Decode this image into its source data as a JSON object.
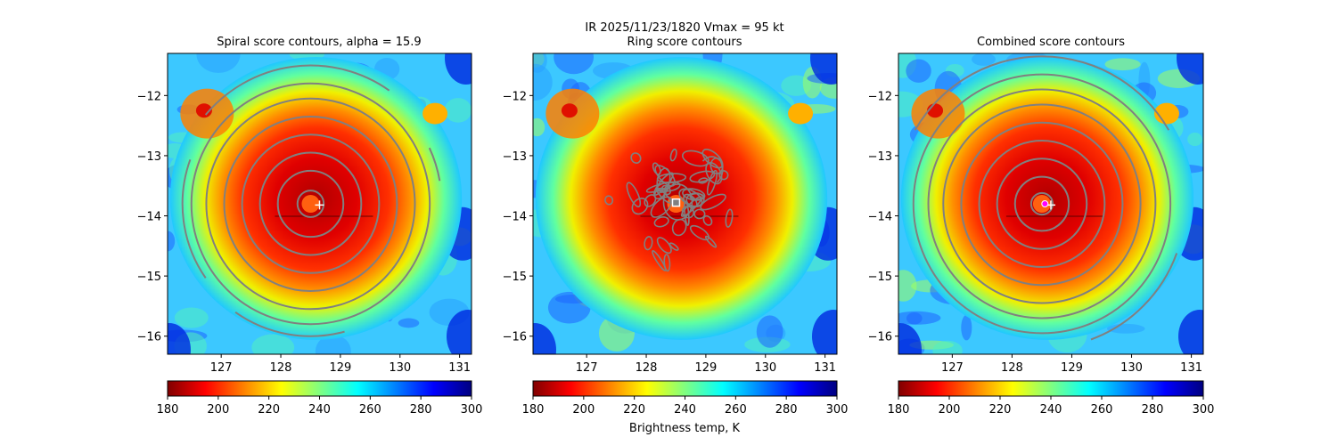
{
  "suptitle": {
    "line1": "IR  2025/11/23/1820    Vmax = 95 kt"
  },
  "colormap": {
    "name": "jet_r",
    "stops": [
      "#800000",
      "#ff0000",
      "#ff8000",
      "#ffff00",
      "#80ff80",
      "#00ffff",
      "#0080ff",
      "#0000ff",
      "#000080"
    ]
  },
  "chart_data": [
    {
      "type": "heatmap",
      "title": "Spiral score contours, alpha = 15.9",
      "xlim": [
        126.1,
        131.2
      ],
      "ylim": [
        -16.3,
        -11.3
      ],
      "xticks": [
        127,
        128,
        129,
        130,
        131
      ],
      "xtick_labels": [
        "127",
        "128",
        "129",
        "130",
        "131"
      ],
      "yticks": [
        -12,
        -13,
        -14,
        -15,
        -16
      ],
      "ytick_labels": [
        "−12",
        "−13",
        "−14",
        "−15",
        "−16"
      ],
      "center": {
        "lon": 128.5,
        "lat": -13.8
      },
      "marker": {
        "type": "plus",
        "lon": 128.65,
        "lat": -13.82,
        "color": "#ffffff"
      },
      "contour_color": "#808080",
      "contour_radii_deg": [
        0.22,
        0.55,
        0.85,
        1.15,
        1.45,
        1.75,
        2.0
      ],
      "outer_arcs": [
        {
          "radius": 2.3,
          "start_deg": 55,
          "end_deg": 140
        },
        {
          "radius": 2.15,
          "start_deg": 160,
          "end_deg": 215
        },
        {
          "radius": 2.2,
          "start_deg": 235,
          "end_deg": 285
        },
        {
          "radius": 2.2,
          "start_deg": 10,
          "end_deg": 25
        }
      ],
      "colorbar": {
        "vmin": 180,
        "vmax": 300,
        "ticks": [
          180,
          200,
          220,
          240,
          260,
          280,
          300
        ],
        "tick_labels": [
          "180",
          "200",
          "220",
          "240",
          "260",
          "280",
          "300"
        ],
        "label": ""
      }
    },
    {
      "type": "heatmap",
      "title": "Ring score contours",
      "xlim": [
        126.1,
        131.2
      ],
      "ylim": [
        -16.3,
        -11.3
      ],
      "xticks": [
        127,
        128,
        129,
        130,
        131
      ],
      "xtick_labels": [
        "127",
        "128",
        "129",
        "130",
        "131"
      ],
      "yticks": [
        -12,
        -13,
        -14,
        -15,
        -16
      ],
      "ytick_labels": [
        "−12",
        "−13",
        "−14",
        "−15",
        "−16"
      ],
      "center": {
        "lon": 128.5,
        "lat": -13.8
      },
      "marker": {
        "type": "square",
        "lon": 128.5,
        "lat": -13.78,
        "color": "#ffffff"
      },
      "contour_color": "#808080",
      "ring_blobs": 46,
      "colorbar": {
        "vmin": 180,
        "vmax": 300,
        "ticks": [
          180,
          200,
          220,
          240,
          260,
          280,
          300
        ],
        "tick_labels": [
          "180",
          "200",
          "220",
          "240",
          "260",
          "280",
          "300"
        ],
        "label": "Brightness temp, K"
      }
    },
    {
      "type": "heatmap",
      "title": "Combined score contours",
      "xlim": [
        126.1,
        131.2
      ],
      "ylim": [
        -16.3,
        -11.3
      ],
      "xticks": [
        127,
        128,
        129,
        130,
        131
      ],
      "xtick_labels": [
        "127",
        "128",
        "129",
        "130",
        "131"
      ],
      "yticks": [
        -12,
        -13,
        -14,
        -15,
        -16
      ],
      "ytick_labels": [
        "−12",
        "−13",
        "−14",
        "−15",
        "−16"
      ],
      "center": {
        "lon": 128.5,
        "lat": -13.8
      },
      "marker": {
        "type": "plus",
        "lon": 128.65,
        "lat": -13.82,
        "color": "#ffffff"
      },
      "marker2": {
        "type": "dot",
        "lon": 128.55,
        "lat": -13.8,
        "color": "#ff00ff"
      },
      "contour_color": "#808080",
      "contour_radii_deg": [
        0.18,
        0.45,
        0.75,
        1.05,
        1.35,
        1.65,
        1.9,
        2.15
      ],
      "outer_arcs": [
        {
          "radius": 2.45,
          "start_deg": 30,
          "end_deg": 150
        },
        {
          "radius": 2.4,
          "start_deg": 290,
          "end_deg": 340
        }
      ],
      "colorbar": {
        "vmin": 180,
        "vmax": 300,
        "ticks": [
          180,
          200,
          220,
          240,
          260,
          280,
          300
        ],
        "tick_labels": [
          "180",
          "200",
          "220",
          "240",
          "260",
          "280",
          "300"
        ],
        "label": ""
      }
    }
  ]
}
